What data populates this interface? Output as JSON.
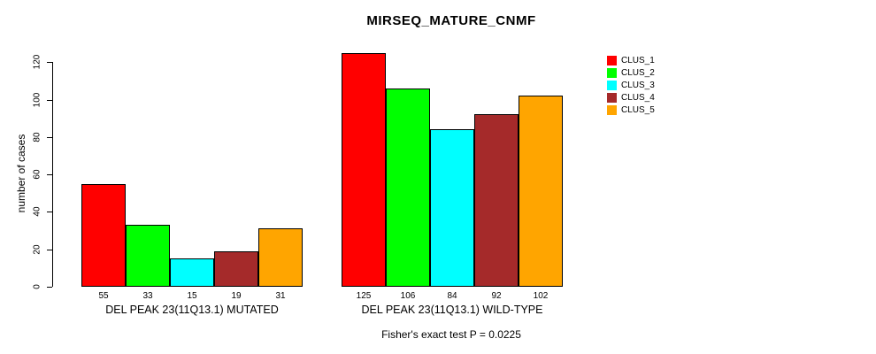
{
  "chart_data": {
    "type": "bar",
    "title": "MIRSEQ_MATURE_CNMF",
    "xlabel": "",
    "ylabel": "number of cases",
    "ylim": [
      0,
      130
    ],
    "yticks": [
      0,
      20,
      40,
      60,
      80,
      100,
      120
    ],
    "grid": false,
    "legend_position": "right",
    "background": "#ffffff",
    "bar_border_color": "#000000",
    "groups": [
      {
        "label": "DEL PEAK 23(11Q13.1) MUTATED",
        "values": [
          55,
          33,
          15,
          19,
          31
        ]
      },
      {
        "label": "DEL PEAK 23(11Q13.1) WILD-TYPE",
        "values": [
          125,
          106,
          84,
          92,
          102
        ]
      }
    ],
    "series": [
      {
        "name": "CLUS_1",
        "color": "#FF0000"
      },
      {
        "name": "CLUS_2",
        "color": "#00FF00"
      },
      {
        "name": "CLUS_3",
        "color": "#00FFFF"
      },
      {
        "name": "CLUS_4",
        "color": "#A52A2A"
      },
      {
        "name": "CLUS_5",
        "color": "#FFA500"
      }
    ],
    "annotation": "Fisher's exact test P = 0.0225"
  }
}
